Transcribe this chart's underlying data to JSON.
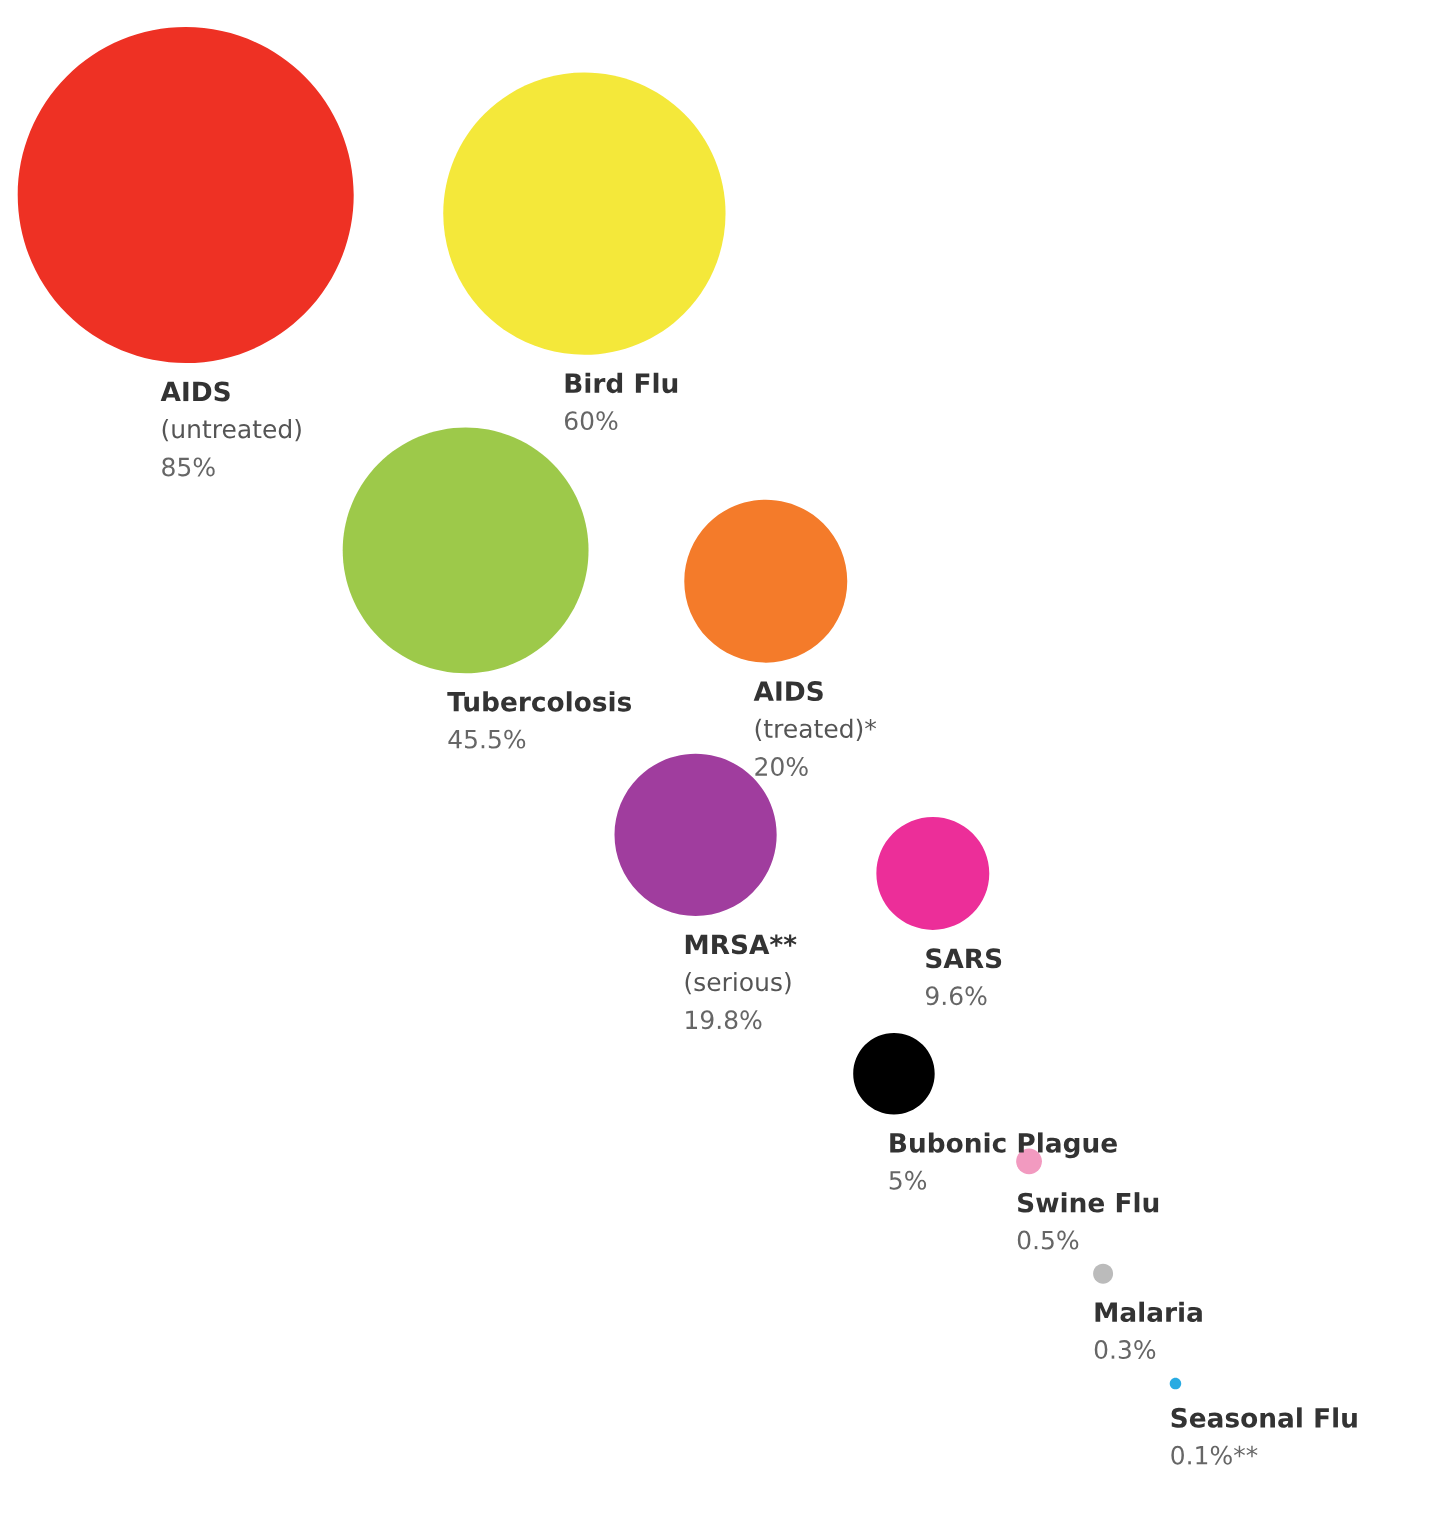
{
  "chart_data": {
    "type": "other",
    "categories": [
      "AIDS\n(untreated)",
      "Bird Flu",
      "Tubercolosis",
      "AIDS\n(treated)*",
      "MRSA**\n(serious)",
      "SARS",
      "Bubonic Plague",
      "Swine Flu",
      "Malaria",
      "Seasonal Flu"
    ],
    "values": [
      85,
      60,
      45.5,
      20,
      19.8,
      9.6,
      5,
      0.5,
      0.3,
      0.1
    ],
    "value_labels": [
      "85%",
      "60%",
      "45.5%",
      "20%",
      "19.8%",
      "9.6%",
      "5%",
      "0.5%",
      "0.3%",
      "0.1%**"
    ],
    "colors": [
      "#ee3124",
      "#f4e83a",
      "#9dc94a",
      "#f47b2a",
      "#a03d9e",
      "#ec2e99",
      "#000000",
      "#f29ac0",
      "#bbbbbb",
      "#29abe2"
    ]
  }
}
